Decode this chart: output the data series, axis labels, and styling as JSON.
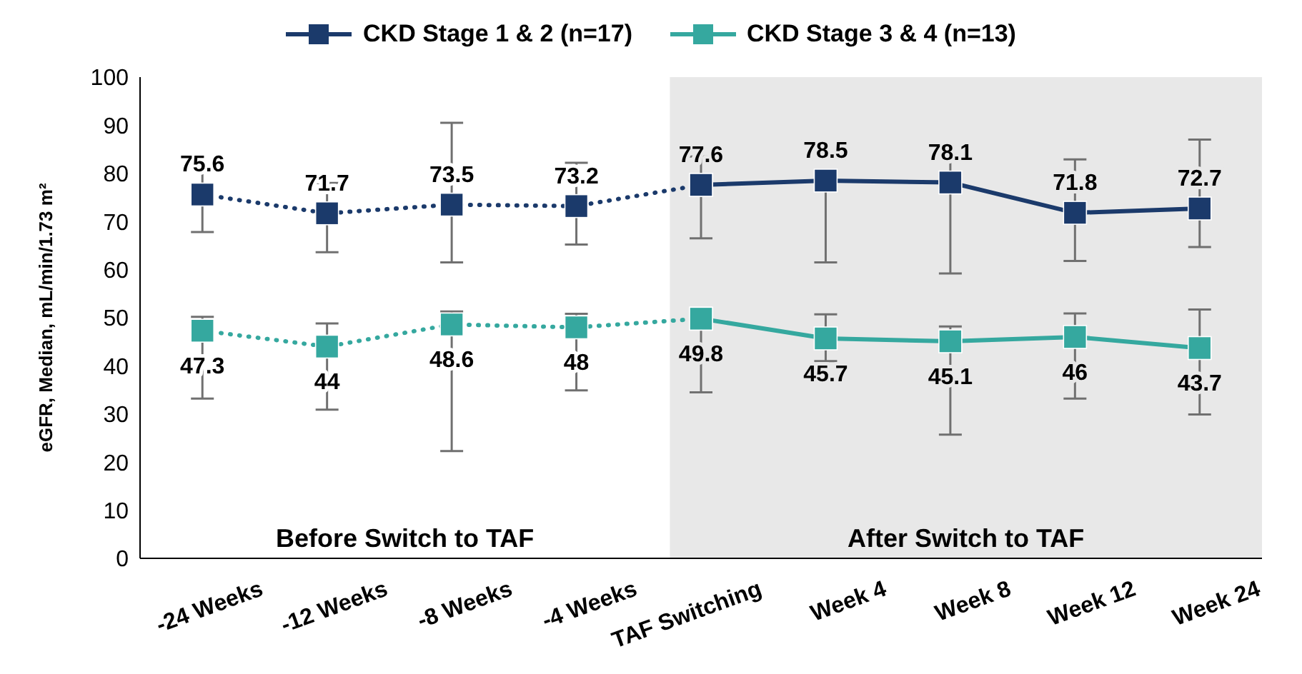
{
  "chart_data": {
    "type": "line",
    "categories": [
      "-24 Weeks",
      "-12 Weeks",
      "-8 Weeks",
      "-4 Weeks",
      "TAF Switching",
      "Week 4",
      "Week 8",
      "Week 12",
      "Week 24"
    ],
    "ylabel": "eGFR, Median, mL/min/1.73 m²",
    "ylim": [
      0,
      100
    ],
    "yticks": [
      0,
      10,
      20,
      30,
      40,
      50,
      60,
      70,
      80,
      90,
      100
    ],
    "grid": false,
    "legend": "top",
    "marker": "square",
    "series": [
      {
        "color": "#1b3a6b",
        "line_style": "dotted",
        "values": [
          75.6,
          71.7,
          73.5,
          73.2,
          77.6,
          null,
          null,
          null,
          null
        ],
        "value_labels": [
          "75.6",
          "71.7",
          "73.5",
          "73.2",
          null,
          null,
          null,
          null,
          null
        ],
        "errors": [
          [
            67.8,
            81.5
          ],
          [
            63.6,
            78
          ],
          [
            61.5,
            90.5
          ],
          [
            65.2,
            82.2
          ],
          null,
          null,
          null,
          null,
          null
        ]
      },
      {
        "color": "#35a89f",
        "line_style": "dotted",
        "values": [
          47.3,
          44,
          48.6,
          48,
          49.8,
          null,
          null,
          null,
          null
        ],
        "value_labels": [
          "47.3",
          "44",
          "48.6",
          "48",
          null,
          null,
          null,
          null,
          null
        ],
        "errors": [
          [
            33.2,
            50.2
          ],
          [
            30.9,
            48.8
          ],
          [
            22.3,
            51.3
          ],
          [
            34.9,
            50.8
          ],
          null,
          null,
          null,
          null,
          null
        ]
      },
      {
        "name": "CKD Stage 1 & 2 (n=17)",
        "color": "#1b3a6b",
        "line_style": "solid",
        "values": [
          null,
          null,
          null,
          null,
          77.6,
          78.5,
          78.1,
          71.8,
          72.7
        ],
        "value_labels": [
          null,
          null,
          null,
          null,
          "77.6",
          "78.5",
          "78.1",
          "71.8",
          "72.7"
        ],
        "errors": [
          null,
          null,
          null,
          null,
          [
            66.5,
            83.5
          ],
          [
            61.5,
            80
          ],
          [
            59.2,
            83.3
          ],
          [
            61.8,
            82.9
          ],
          [
            64.7,
            87
          ]
        ]
      },
      {
        "name": "CKD Stage 3 & 4 (n=13)",
        "color": "#35a89f",
        "line_style": "solid",
        "values": [
          null,
          null,
          null,
          null,
          49.8,
          45.7,
          45.1,
          46,
          43.7
        ],
        "value_labels": [
          null,
          null,
          null,
          null,
          "49.8",
          "45.7",
          "45.1",
          "46",
          "43.7"
        ],
        "errors": [
          null,
          null,
          null,
          null,
          [
            34.5,
            49.8
          ],
          [
            41,
            50.7
          ],
          [
            25.7,
            48.2
          ],
          [
            33.2,
            50.9
          ],
          [
            29.9,
            51.7
          ]
        ]
      }
    ],
    "bands": [
      {
        "axis": "x",
        "from": "TAF Switching",
        "to": "Week 24",
        "label": "After Switch to TAF",
        "color": "#e8e8e8"
      }
    ],
    "annotations": [
      "Before Switch to TAF"
    ]
  }
}
